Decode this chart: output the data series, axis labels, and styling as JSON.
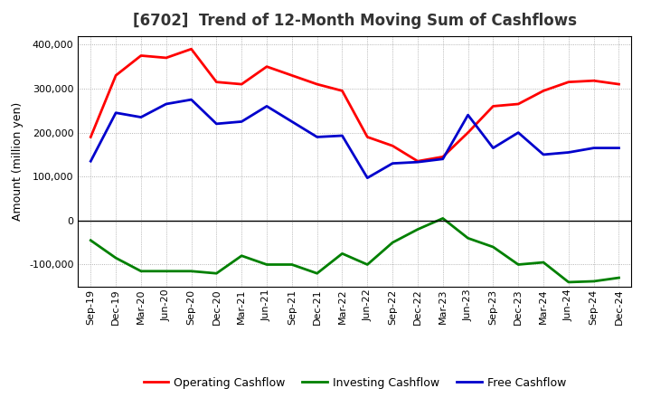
{
  "title": "[6702]  Trend of 12-Month Moving Sum of Cashflows",
  "ylabel": "Amount (million yen)",
  "background_color": "#ffffff",
  "grid_color": "#888888",
  "labels": [
    "Sep-19",
    "Dec-19",
    "Mar-20",
    "Jun-20",
    "Sep-20",
    "Dec-20",
    "Mar-21",
    "Jun-21",
    "Sep-21",
    "Dec-21",
    "Mar-22",
    "Jun-22",
    "Sep-22",
    "Dec-22",
    "Mar-23",
    "Jun-23",
    "Sep-23",
    "Dec-23",
    "Mar-24",
    "Jun-24",
    "Sep-24",
    "Dec-24"
  ],
  "operating": [
    190000,
    330000,
    375000,
    370000,
    390000,
    315000,
    310000,
    350000,
    330000,
    310000,
    295000,
    190000,
    170000,
    135000,
    145000,
    200000,
    260000,
    265000,
    295000,
    315000,
    318000,
    310000
  ],
  "investing": [
    -45000,
    -85000,
    -115000,
    -115000,
    -115000,
    -120000,
    -80000,
    -100000,
    -100000,
    -120000,
    -75000,
    -100000,
    -50000,
    -20000,
    5000,
    -40000,
    -60000,
    -100000,
    -95000,
    -140000,
    -138000,
    -130000
  ],
  "free": [
    135000,
    245000,
    235000,
    265000,
    275000,
    220000,
    225000,
    260000,
    225000,
    190000,
    193000,
    97000,
    130000,
    133000,
    140000,
    240000,
    165000,
    200000,
    150000,
    155000,
    165000,
    165000
  ],
  "ylim": [
    -150000,
    420000
  ],
  "yticks": [
    -100000,
    0,
    100000,
    200000,
    300000,
    400000
  ],
  "line_width": 2.0,
  "operating_color": "#ff0000",
  "investing_color": "#008000",
  "free_color": "#0000cc",
  "title_fontsize": 12,
  "axis_fontsize": 9,
  "tick_fontsize": 8,
  "legend_fontsize": 9
}
